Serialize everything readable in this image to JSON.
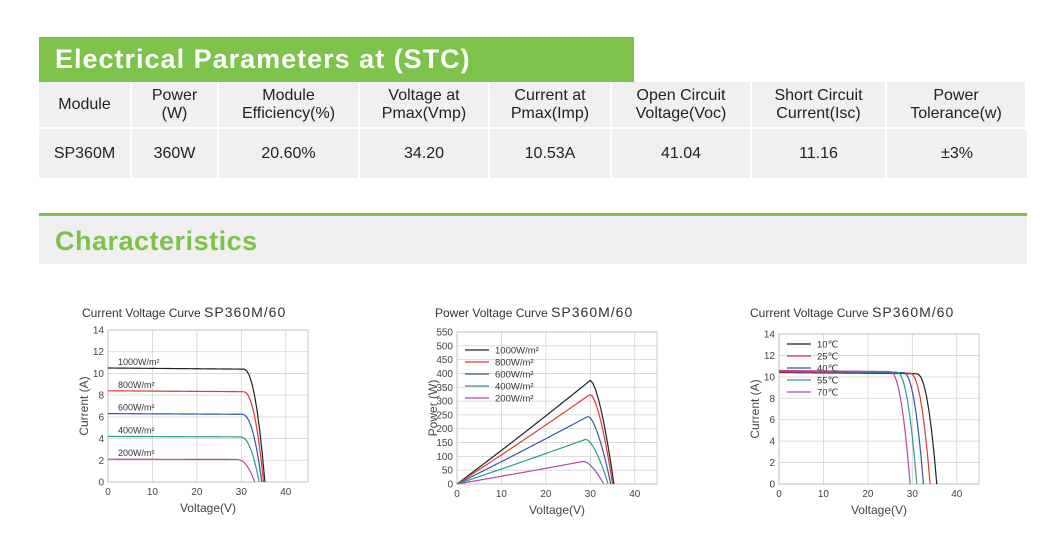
{
  "stc": {
    "title": "Electrical Parameters at (STC)",
    "headers": [
      "Module",
      "Power\n(W)",
      "Module\nEfficiency(%)",
      "Voltage at\nPmax(Vmp)",
      "Current at\nPmax(Imp)",
      "Open Circuit\nVoltage(Voc)",
      "Short Circuit\nCurrent(Isc)",
      "Power\nTolerance(w)"
    ],
    "values": [
      "SP360M",
      "360W",
      "20.60%",
      "34.20",
      "10.53A",
      "41.04",
      "11.16",
      "±3%"
    ]
  },
  "characteristics": {
    "title": "Characteristics"
  },
  "colors": {
    "accent": "#7dc24b",
    "band": "#efefef"
  },
  "charts": [
    {
      "title_prefix": "Current Voltage Curve",
      "title_model": "SP360M/60",
      "chart_data": {
        "type": "line",
        "xlabel": "Voltage(V)",
        "ylabel": "Current (A)",
        "xlim": [
          0,
          45
        ],
        "ylim": [
          0,
          14
        ],
        "xticks": [
          0,
          10,
          20,
          30,
          40
        ],
        "yticks": [
          0,
          2,
          4,
          6,
          8,
          10,
          12,
          14
        ],
        "grid": true,
        "legend": "inline-labels",
        "series": [
          {
            "name": "1000W/m²",
            "color": "#222222",
            "isc": 10.5,
            "voc": 35.3,
            "knee": 30.5
          },
          {
            "name": "800W/m²",
            "color": "#d9393b",
            "isc": 8.4,
            "voc": 35.0,
            "knee": 30.5
          },
          {
            "name": "600W/m²",
            "color": "#3a55a0",
            "isc": 6.3,
            "voc": 34.6,
            "knee": 30.2
          },
          {
            "name": "400W/m²",
            "color": "#2e9b8f",
            "isc": 4.2,
            "voc": 34.0,
            "knee": 29.8
          },
          {
            "name": "200W/m²",
            "color": "#b04aa0",
            "isc": 2.1,
            "voc": 33.0,
            "knee": 29.0
          }
        ]
      }
    },
    {
      "title_prefix": "Power Voltage Curve",
      "title_model": "SP360M/60",
      "chart_data": {
        "type": "line",
        "xlabel": "Voltage(V)",
        "ylabel": "Power (W)",
        "xlim": [
          0,
          45
        ],
        "ylim": [
          0,
          550
        ],
        "xticks": [
          0,
          10,
          20,
          30,
          40
        ],
        "yticks": [
          0,
          50,
          100,
          150,
          200,
          250,
          300,
          350,
          400,
          450,
          500,
          550
        ],
        "grid": true,
        "legend": "top-left",
        "series": [
          {
            "name": "1000W/m²",
            "color": "#222222",
            "vmp": 30,
            "pmax": 375,
            "voc": 35.3
          },
          {
            "name": "800W/m²",
            "color": "#d9393b",
            "vmp": 30,
            "pmax": 325,
            "voc": 35.0
          },
          {
            "name": "600W/m²",
            "color": "#3a55a0",
            "vmp": 29.5,
            "pmax": 245,
            "voc": 34.6
          },
          {
            "name": "400W/m²",
            "color": "#2e9b8f",
            "vmp": 29,
            "pmax": 162,
            "voc": 34.0
          },
          {
            "name": "200W/m²",
            "color": "#b04aa0",
            "vmp": 28.5,
            "pmax": 82,
            "voc": 33.0
          }
        ]
      }
    },
    {
      "title_prefix": "Current Voltage Curve",
      "title_model": "SP360M/60",
      "chart_data": {
        "type": "line",
        "xlabel": "Voltage(V)",
        "ylabel": "Current (A)",
        "xlim": [
          0,
          45
        ],
        "ylim": [
          0,
          14
        ],
        "xticks": [
          0,
          10,
          20,
          30,
          40
        ],
        "yticks": [
          0,
          2,
          4,
          6,
          8,
          10,
          12,
          14
        ],
        "grid": true,
        "legend": "top-left",
        "series": [
          {
            "name": "10℃",
            "color": "#222222",
            "isc": 10.4,
            "voc": 35.5,
            "knee": 31.0
          },
          {
            "name": "25℃",
            "color": "#d9393b",
            "isc": 10.45,
            "voc": 34.0,
            "knee": 29.5
          },
          {
            "name": "40℃",
            "color": "#3a55a0",
            "isc": 10.5,
            "voc": 32.5,
            "knee": 28.0
          },
          {
            "name": "55℃",
            "color": "#2e9b8f",
            "isc": 10.55,
            "voc": 31.0,
            "knee": 26.5
          },
          {
            "name": "70℃",
            "color": "#b04aa0",
            "isc": 10.6,
            "voc": 29.5,
            "knee": 25.0
          }
        ]
      }
    }
  ]
}
